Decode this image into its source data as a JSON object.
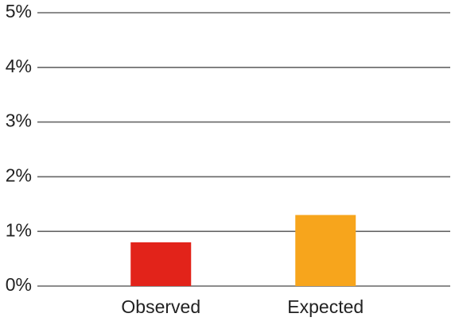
{
  "chart_data": {
    "type": "bar",
    "categories": [
      "Observed",
      "Expected"
    ],
    "values": [
      0.8,
      1.3
    ],
    "colors": [
      "#e2231a",
      "#f7a51c"
    ],
    "ylim": [
      0,
      5
    ],
    "yticks": [
      {
        "value": 0,
        "label": "0%"
      },
      {
        "value": 1,
        "label": "1%"
      },
      {
        "value": 2,
        "label": "2%"
      },
      {
        "value": 3,
        "label": "3%"
      },
      {
        "value": 4,
        "label": "4%"
      },
      {
        "value": 5,
        "label": "5%"
      }
    ],
    "grid": true
  }
}
